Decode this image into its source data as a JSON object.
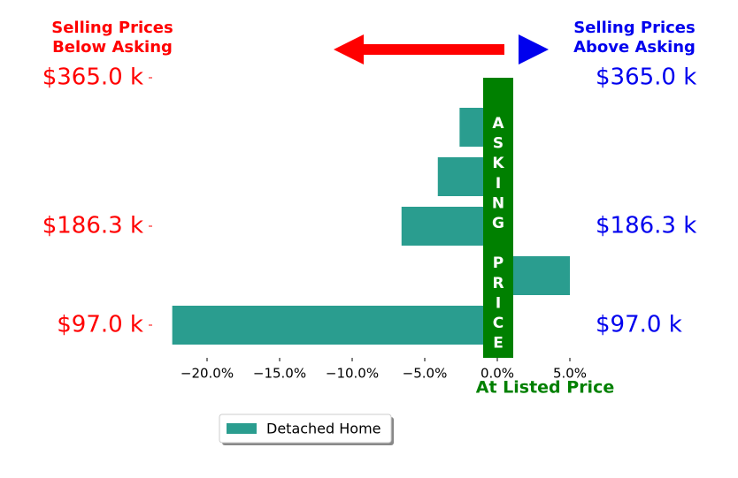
{
  "chart_data": {
    "type": "barh",
    "categories": [
      "$97.0 k",
      null,
      "$186.3 k",
      null,
      null,
      "$365.0 k"
    ],
    "series": [
      {
        "name": "Detached Home",
        "color": "#2a9d8f",
        "values": [
          -22.4,
          5.0,
          -6.6,
          -4.1,
          -2.6,
          null
        ]
      }
    ],
    "xlim": [
      -23.5,
      5.5
    ],
    "xticks": [
      {
        "value": -20,
        "label": "−20.0%"
      },
      {
        "value": -15,
        "label": "−15.0%"
      },
      {
        "value": -10,
        "label": "−10.0%"
      },
      {
        "value": -5,
        "label": "−5.0%"
      },
      {
        "value": 0,
        "label": "0.0%"
      },
      {
        "value": 5,
        "label": "5.0%"
      }
    ],
    "left_note": [
      "Selling Prices",
      "Below Asking"
    ],
    "right_note": [
      "Selling Prices",
      "Above Asking"
    ],
    "center_label": "ASKING PRICE",
    "bottom_note": "At Listed Price",
    "left_label_color": "#ff0000",
    "right_label_color": "#0000ee"
  }
}
